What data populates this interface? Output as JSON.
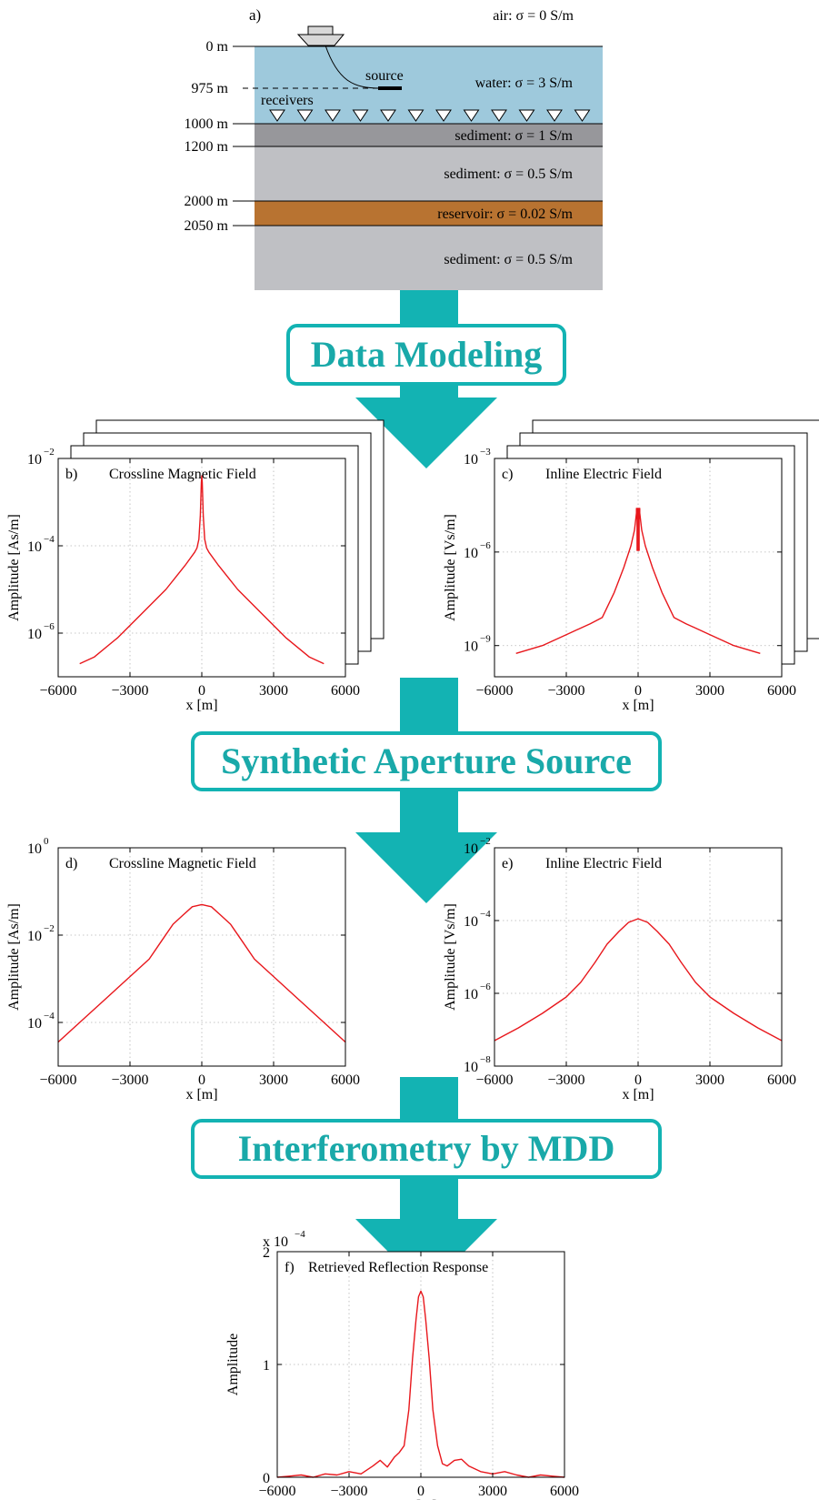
{
  "colors": {
    "teal": "#13b3b3",
    "water": "#9ec9dc",
    "sediment_dark": "#97979b",
    "sediment_light": "#bfc0c4",
    "reservoir": "#b87331",
    "curve": "#e8171c"
  },
  "model": {
    "panel_label": "a)",
    "air_label": "air: σ = 0 S/m",
    "source_label": "source",
    "receivers_label": "receivers",
    "receiver_count": 12,
    "layers": [
      {
        "depth_label": "0 m",
        "label": "water: σ = 3 S/m"
      },
      {
        "depth_label": "1000 m",
        "label": "sediment: σ = 1 S/m"
      },
      {
        "depth_label": "1200 m",
        "label": "sediment: σ = 0.5 S/m"
      },
      {
        "depth_label": "2000 m",
        "label": "reservoir: σ = 0.02 S/m"
      },
      {
        "depth_label": "2050 m",
        "label": "sediment: σ = 0.5 S/m"
      }
    ],
    "source_depth_label": "975 m"
  },
  "steps": [
    "Data Modeling",
    "Synthetic Aperture Source",
    "Interferometry by MDD"
  ],
  "chart_data": [
    {
      "id": "b",
      "type": "line",
      "panel_label": "b)",
      "title": "Crossline Magnetic Field",
      "xlabel": "x [m]",
      "ylabel": "Amplitude [As/m]",
      "yscale": "log",
      "xlim": [
        -6000,
        6000
      ],
      "ylim_exp": [
        -7,
        -2
      ],
      "xticks": [
        -6000,
        -3000,
        0,
        3000,
        6000
      ],
      "yticks": [
        {
          "exp": -2,
          "base": "10",
          "sup": "−2"
        },
        {
          "exp": -4,
          "base": "10",
          "sup": "−4"
        },
        {
          "exp": -6,
          "base": "10",
          "sup": "−6"
        }
      ],
      "grid": true,
      "stacked_copies": 3,
      "series": [
        {
          "x": [
            -5100,
            -4500,
            -3500,
            -2500,
            -1500,
            -700,
            -300,
            -200,
            -120,
            -60,
            -20,
            0,
            20,
            60,
            120,
            200,
            300,
            700,
            1500,
            2500,
            3500,
            4500,
            5100
          ],
          "y_log10": [
            -6.7,
            -6.55,
            -6.1,
            -5.55,
            -5.0,
            -4.45,
            -4.15,
            -4.05,
            -3.85,
            -3.3,
            -2.55,
            -2.4,
            -2.55,
            -3.3,
            -3.85,
            -4.05,
            -4.15,
            -4.45,
            -5.0,
            -5.55,
            -6.1,
            -6.55,
            -6.7
          ]
        }
      ]
    },
    {
      "id": "c",
      "type": "line",
      "panel_label": "c)",
      "title": "Inline Electric Field",
      "xlabel": "x [m]",
      "ylabel": "Amplitude [Vs/m]",
      "yscale": "log",
      "xlim": [
        -6000,
        6000
      ],
      "ylim_exp": [
        -10,
        -3
      ],
      "xticks": [
        -6000,
        -3000,
        0,
        3000,
        6000
      ],
      "yticks": [
        {
          "exp": -3,
          "base": "10",
          "sup": "−3"
        },
        {
          "exp": -6,
          "base": "10",
          "sup": "−6"
        },
        {
          "exp": -9,
          "base": "10",
          "sup": "−9"
        }
      ],
      "grid": true,
      "stacked_copies": 3,
      "series": [
        {
          "x": [
            -5100,
            -4000,
            -3000,
            -2000,
            -1500,
            -1000,
            -600,
            -300,
            -150,
            -70,
            -70,
            -40,
            -40,
            -10,
            -10,
            10,
            10,
            40,
            40,
            70,
            70,
            150,
            300,
            600,
            1000,
            1500,
            2000,
            3000,
            4000,
            5100
          ],
          "y_log10": [
            -9.25,
            -9.0,
            -8.65,
            -8.3,
            -8.1,
            -7.3,
            -6.5,
            -5.8,
            -5.3,
            -4.75,
            -4.6,
            -4.6,
            -5.95,
            -5.95,
            -4.6,
            -4.6,
            -5.95,
            -5.95,
            -4.6,
            -4.6,
            -4.75,
            -5.3,
            -5.8,
            -6.5,
            -7.3,
            -8.1,
            -8.3,
            -8.65,
            -9.0,
            -9.25
          ]
        }
      ]
    },
    {
      "id": "d",
      "type": "line",
      "panel_label": "d)",
      "title": "Crossline Magnetic Field",
      "xlabel": "x [m]",
      "ylabel": "Amplitude [As/m]",
      "yscale": "log",
      "xlim": [
        -6000,
        6000
      ],
      "ylim_exp": [
        -5,
        0
      ],
      "xticks": [
        -6000,
        -3000,
        0,
        3000,
        6000
      ],
      "yticks": [
        {
          "exp": 0,
          "base": "10",
          "sup": "0"
        },
        {
          "exp": -2,
          "base": "10",
          "sup": "−2"
        },
        {
          "exp": -4,
          "base": "10",
          "sup": "−4"
        }
      ],
      "grid": true,
      "stacked_copies": 0,
      "series": [
        {
          "x": [
            -6000,
            -5000,
            -4000,
            -3000,
            -2200,
            -1700,
            -1200,
            -800,
            -400,
            0,
            400,
            800,
            1200,
            1700,
            2200,
            3000,
            4000,
            5000,
            6000
          ],
          "y_log10": [
            -4.45,
            -3.95,
            -3.45,
            -2.95,
            -2.55,
            -2.15,
            -1.75,
            -1.55,
            -1.35,
            -1.3,
            -1.35,
            -1.55,
            -1.75,
            -2.15,
            -2.55,
            -2.95,
            -3.45,
            -3.95,
            -4.45
          ]
        }
      ]
    },
    {
      "id": "e",
      "type": "line",
      "panel_label": "e)",
      "title": "Inline Electric Field",
      "xlabel": "x [m]",
      "ylabel": "Amplitude [Vs/m]",
      "yscale": "log",
      "xlim": [
        -6000,
        6000
      ],
      "ylim_exp": [
        -8,
        -2
      ],
      "xticks": [
        -6000,
        -3000,
        0,
        3000,
        6000
      ],
      "yticks": [
        {
          "exp": -2,
          "base": "10",
          "sup": "−2"
        },
        {
          "exp": -4,
          "base": "10",
          "sup": "−4"
        },
        {
          "exp": -6,
          "base": "10",
          "sup": "−6"
        },
        {
          "exp": -8,
          "base": "10",
          "sup": "−8"
        }
      ],
      "grid": true,
      "stacked_copies": 0,
      "series": [
        {
          "x": [
            -6000,
            -5000,
            -4000,
            -3000,
            -2400,
            -1800,
            -1300,
            -800,
            -400,
            0,
            400,
            800,
            1300,
            1800,
            2400,
            3000,
            4000,
            5000,
            6000
          ],
          "y_log10": [
            -7.3,
            -6.95,
            -6.55,
            -6.1,
            -5.7,
            -5.15,
            -4.65,
            -4.3,
            -4.05,
            -3.95,
            -4.05,
            -4.3,
            -4.65,
            -5.15,
            -5.7,
            -6.1,
            -6.55,
            -6.95,
            -7.3
          ]
        }
      ]
    },
    {
      "id": "f",
      "type": "line",
      "panel_label": "f)",
      "title": "Retrieved Reflection Response",
      "xlabel": "x [m]",
      "ylabel": "Amplitude",
      "yscale": "linear",
      "exponent_label": "x 10",
      "exponent_sup": "−4",
      "xlim": [
        -6000,
        6000
      ],
      "ylim": [
        0,
        2
      ],
      "xticks": [
        -6000,
        -3000,
        0,
        3000,
        6000
      ],
      "yticks": [
        {
          "value": 0,
          "label": "0"
        },
        {
          "value": 1,
          "label": "1"
        },
        {
          "value": 2,
          "label": "2"
        }
      ],
      "grid": true,
      "stacked_copies": 0,
      "series": [
        {
          "x": [
            -6000,
            -5500,
            -5000,
            -4500,
            -4000,
            -3500,
            -3000,
            -2500,
            -2000,
            -1700,
            -1400,
            -1100,
            -900,
            -700,
            -500,
            -350,
            -200,
            -100,
            0,
            100,
            200,
            350,
            500,
            700,
            900,
            1100,
            1400,
            1700,
            2000,
            2500,
            3000,
            3500,
            4000,
            4500,
            5000,
            5500,
            6000
          ],
          "y": [
            0.0,
            0.01,
            0.02,
            0.0,
            0.03,
            0.02,
            0.05,
            0.03,
            0.1,
            0.15,
            0.09,
            0.18,
            0.22,
            0.28,
            0.6,
            1.05,
            1.4,
            1.6,
            1.65,
            1.6,
            1.4,
            1.05,
            0.6,
            0.28,
            0.12,
            0.1,
            0.15,
            0.16,
            0.1,
            0.05,
            0.03,
            0.05,
            0.02,
            0.0,
            0.02,
            0.01,
            0.0
          ]
        }
      ]
    }
  ]
}
